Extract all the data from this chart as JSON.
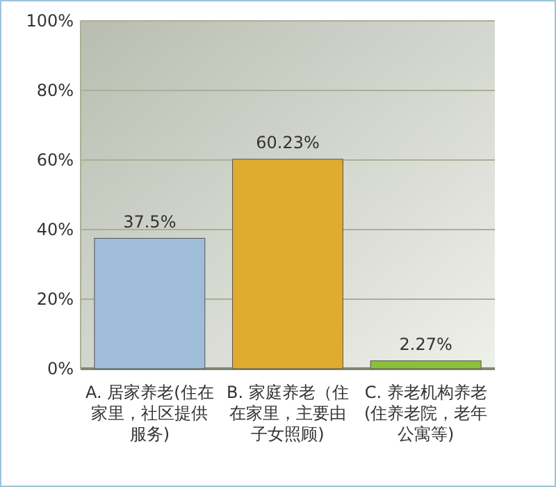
{
  "chart_data": {
    "type": "bar",
    "categories": [
      "A. 居家养老(住在家里，社区提供服务)",
      "B. 家庭养老（住在家里，主要由子女照顾)",
      "C. 养老机构养老(住养老院，老年公寓等)"
    ],
    "values": [
      37.5,
      60.23,
      2.27
    ],
    "value_labels": [
      "37.5%",
      "60.23%",
      "2.27%"
    ],
    "colors": [
      "#9fbcd9",
      "#e0ac30",
      "#8cbf3a"
    ],
    "ylim": [
      0,
      100
    ],
    "yticks": [
      {
        "value": 0,
        "label": "0%"
      },
      {
        "value": 20,
        "label": "20%"
      },
      {
        "value": 40,
        "label": "40%"
      },
      {
        "value": 60,
        "label": "60%"
      },
      {
        "value": 80,
        "label": "80%"
      },
      {
        "value": 100,
        "label": "100%"
      }
    ],
    "grid": "y"
  }
}
